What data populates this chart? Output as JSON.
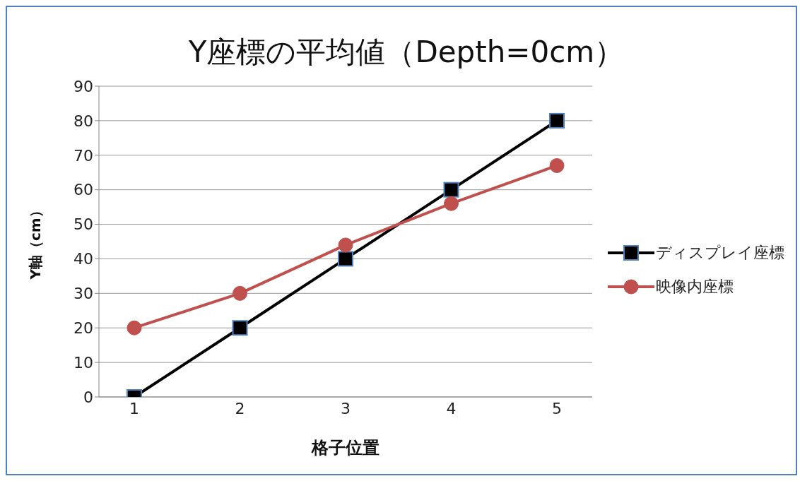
{
  "chart_data": {
    "type": "line",
    "title": "Y座標の平均値（Depth=0cm）",
    "xlabel": "格子位置",
    "ylabel": "Y軸（cm）",
    "categories": [
      "1",
      "2",
      "3",
      "4",
      "5"
    ],
    "series": [
      {
        "name": "ディスプレイ座標",
        "color": "#000000",
        "marker": "square",
        "values": [
          0,
          20,
          40,
          60,
          80
        ]
      },
      {
        "name": "映像内座標",
        "color": "#c0504d",
        "marker": "circle",
        "values": [
          20,
          30,
          44,
          56,
          67
        ]
      }
    ],
    "ylim": [
      0,
      90
    ],
    "yticks": [
      0,
      10,
      20,
      30,
      40,
      50,
      60,
      70,
      80,
      90
    ],
    "grid": "y",
    "legend": "right",
    "line_style": "solid"
  }
}
